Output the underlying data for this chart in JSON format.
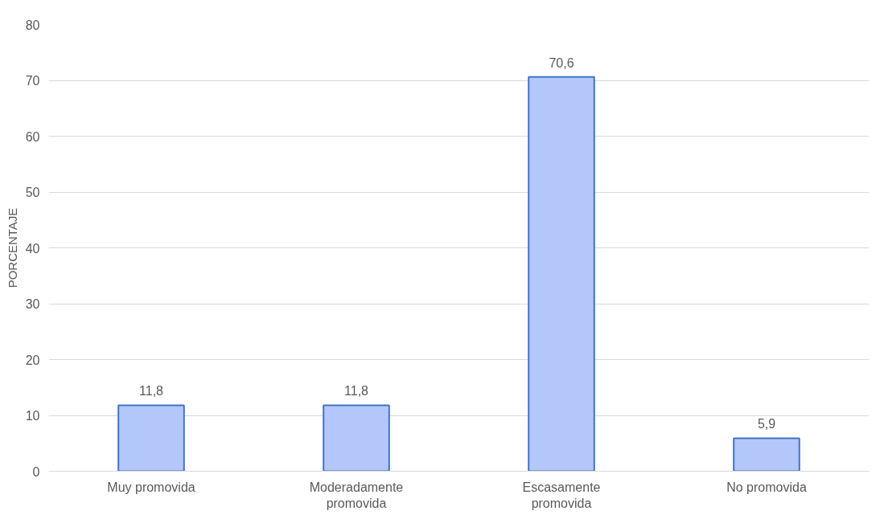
{
  "chart_data": {
    "type": "bar",
    "ylabel": "PORCENTAJE",
    "categories": [
      "Muy promovida",
      "Moderadamente\npromovida",
      "Escasamente\npromovida",
      "No promovida"
    ],
    "values": [
      11.8,
      11.8,
      70.6,
      5.9
    ],
    "value_labels": [
      "11,8",
      "11,8",
      "70,6",
      "5,9"
    ],
    "color": "#b4c7fb",
    "ylim": [
      0,
      80
    ],
    "yticks": [
      0,
      10,
      20,
      30,
      40,
      50,
      60,
      70,
      80
    ],
    "grid": "y"
  }
}
